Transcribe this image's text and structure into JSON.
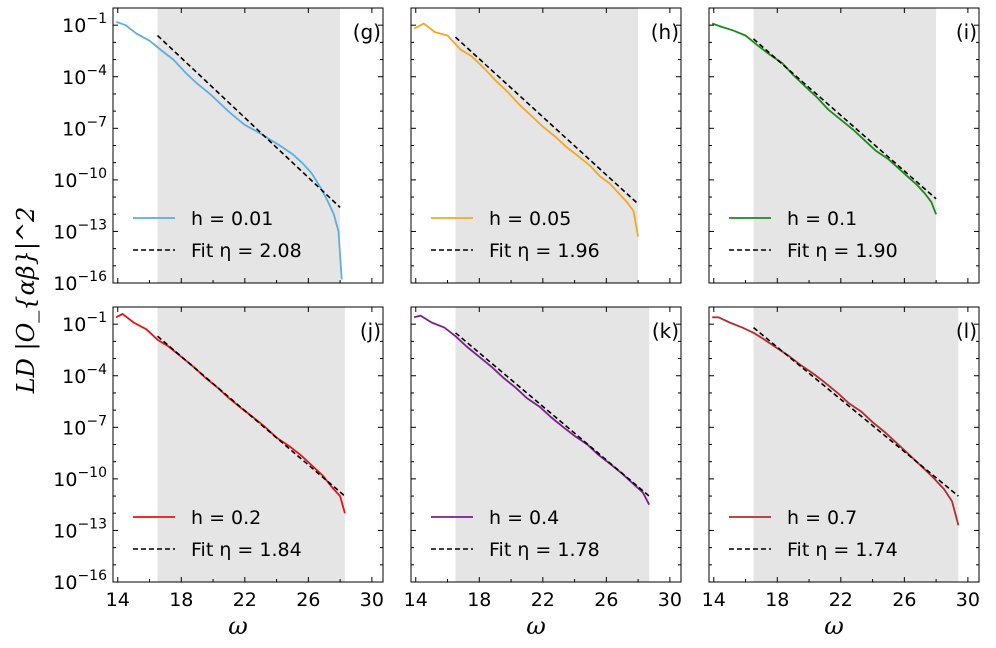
{
  "figure": {
    "ylabel": "LD |O_{αβ}|^2",
    "xlabel": "ω"
  },
  "chart_data": [
    {
      "type": "line",
      "panel": "(g)",
      "color": "#5dade2",
      "fit_region": [
        16.5,
        28.0
      ],
      "xlim": [
        13.7,
        30.7
      ],
      "ylim_exp": [
        -16,
        0
      ],
      "legend": [
        {
          "label": "h = 0.01",
          "style": "solid"
        },
        {
          "label": "Fit η = 2.08",
          "style": "dashed"
        }
      ],
      "series": [
        {
          "name": "h = 0.01",
          "x": [
            13.9,
            14.5,
            15.2,
            16.0,
            16.8,
            17.5,
            18.3,
            19.0,
            19.8,
            20.5,
            21.2,
            22.0,
            22.8,
            23.5,
            24.2,
            25.0,
            25.6,
            26.2,
            26.8,
            27.2,
            27.6,
            27.9,
            28.1
          ],
          "y": [
            -0.8,
            -1.0,
            -1.5,
            -1.9,
            -2.5,
            -3.0,
            -3.8,
            -4.4,
            -5.0,
            -5.6,
            -6.2,
            -6.8,
            -7.2,
            -7.6,
            -8.0,
            -8.5,
            -9.0,
            -9.6,
            -10.5,
            -11.2,
            -12.0,
            -13.0,
            -15.8
          ]
        },
        {
          "name": "Fit η = 2.08",
          "x": [
            16.5,
            28.0
          ],
          "y": [
            -1.6,
            -11.6
          ],
          "style": "dashed"
        }
      ]
    },
    {
      "type": "line",
      "panel": "(h)",
      "color": "#f5a623",
      "fit_region": [
        16.5,
        28.0
      ],
      "xlim": [
        13.7,
        30.7
      ],
      "ylim_exp": [
        -16,
        0
      ],
      "legend": [
        {
          "label": "h = 0.05",
          "style": "solid"
        },
        {
          "label": "Fit η = 1.96",
          "style": "dashed"
        }
      ],
      "series": [
        {
          "name": "h = 0.05",
          "x": [
            13.9,
            14.5,
            15.2,
            16.0,
            16.8,
            17.5,
            18.3,
            19.0,
            19.8,
            20.5,
            21.2,
            22.0,
            22.8,
            23.5,
            24.2,
            25.0,
            25.6,
            26.2,
            26.8,
            27.3,
            27.7,
            28.0
          ],
          "y": [
            -1.2,
            -0.9,
            -1.4,
            -1.6,
            -2.4,
            -2.8,
            -3.5,
            -4.2,
            -4.9,
            -5.6,
            -6.2,
            -6.9,
            -7.5,
            -8.1,
            -8.6,
            -9.2,
            -9.8,
            -10.2,
            -10.8,
            -11.3,
            -11.8,
            -13.3
          ]
        },
        {
          "name": "Fit η = 1.96",
          "x": [
            16.5,
            28.0
          ],
          "y": [
            -1.7,
            -11.4
          ],
          "style": "dashed"
        }
      ]
    },
    {
      "type": "line",
      "panel": "(i)",
      "color": "#1a8a1a",
      "fit_region": [
        16.5,
        28.0
      ],
      "xlim": [
        13.7,
        30.7
      ],
      "ylim_exp": [
        -16,
        0
      ],
      "legend": [
        {
          "label": "h = 0.1",
          "style": "solid"
        },
        {
          "label": "Fit η = 1.90",
          "style": "dashed"
        }
      ],
      "series": [
        {
          "name": "h = 0.1",
          "x": [
            13.9,
            14.5,
            15.2,
            16.0,
            16.8,
            17.5,
            18.3,
            19.0,
            19.8,
            20.5,
            21.2,
            22.0,
            22.8,
            23.5,
            24.2,
            25.0,
            25.6,
            26.2,
            26.8,
            27.3,
            27.7,
            28.0
          ],
          "y": [
            -0.9,
            -1.1,
            -1.3,
            -1.6,
            -2.2,
            -2.7,
            -3.2,
            -3.9,
            -4.6,
            -5.2,
            -5.9,
            -6.5,
            -7.1,
            -7.7,
            -8.3,
            -8.8,
            -9.3,
            -9.8,
            -10.3,
            -10.8,
            -11.3,
            -12.0
          ]
        },
        {
          "name": "Fit η = 1.90",
          "x": [
            16.5,
            28.0
          ],
          "y": [
            -1.8,
            -11.1
          ],
          "style": "dashed"
        }
      ]
    },
    {
      "type": "line",
      "panel": "(j)",
      "color": "#ee1111",
      "fit_region": [
        16.5,
        28.3
      ],
      "xlim": [
        13.7,
        30.7
      ],
      "ylim_exp": [
        -16,
        0
      ],
      "legend": [
        {
          "label": "h = 0.2",
          "style": "solid"
        },
        {
          "label": "Fit η = 1.84",
          "style": "dashed"
        }
      ],
      "series": [
        {
          "name": "h = 0.2",
          "x": [
            13.9,
            14.3,
            15.0,
            15.8,
            16.5,
            17.2,
            18.0,
            18.8,
            19.5,
            20.3,
            21.0,
            21.8,
            22.5,
            23.3,
            24.0,
            24.8,
            25.5,
            26.2,
            26.9,
            27.5,
            28.0,
            28.3
          ],
          "y": [
            -0.6,
            -0.4,
            -0.9,
            -1.3,
            -1.9,
            -2.3,
            -2.9,
            -3.5,
            -4.1,
            -4.7,
            -5.3,
            -5.9,
            -6.4,
            -7.0,
            -7.6,
            -8.1,
            -8.6,
            -9.2,
            -9.8,
            -10.5,
            -11.0,
            -12.0
          ]
        },
        {
          "name": "Fit η = 1.84",
          "x": [
            16.5,
            28.3
          ],
          "y": [
            -1.7,
            -11.0
          ],
          "style": "dashed"
        }
      ]
    },
    {
      "type": "line",
      "panel": "(k)",
      "color": "#7a1f8f",
      "fit_region": [
        16.5,
        28.7
      ],
      "xlim": [
        13.7,
        30.7
      ],
      "ylim_exp": [
        -16,
        0
      ],
      "legend": [
        {
          "label": "h = 0.4",
          "style": "solid"
        },
        {
          "label": "Fit η = 1.78",
          "style": "dashed"
        }
      ],
      "series": [
        {
          "name": "h = 0.4",
          "x": [
            13.9,
            14.3,
            15.0,
            15.8,
            16.5,
            17.2,
            18.0,
            18.8,
            19.5,
            20.3,
            21.0,
            21.8,
            22.5,
            23.3,
            24.0,
            24.8,
            25.5,
            26.2,
            27.0,
            27.7,
            28.3,
            28.7
          ],
          "y": [
            -0.6,
            -0.5,
            -0.9,
            -1.2,
            -1.7,
            -2.3,
            -2.9,
            -3.5,
            -4.1,
            -4.7,
            -5.3,
            -5.8,
            -6.4,
            -7.0,
            -7.5,
            -8.0,
            -8.6,
            -9.1,
            -9.7,
            -10.3,
            -10.8,
            -11.5
          ]
        },
        {
          "name": "Fit η = 1.78",
          "x": [
            16.5,
            28.7
          ],
          "y": [
            -1.5,
            -11.0
          ],
          "style": "dashed"
        }
      ]
    },
    {
      "type": "line",
      "panel": "(l)",
      "color": "#b22d2d",
      "fit_region": [
        16.5,
        29.4
      ],
      "xlim": [
        13.7,
        30.7
      ],
      "ylim_exp": [
        -16,
        0
      ],
      "legend": [
        {
          "label": "h = 0.7",
          "style": "solid"
        },
        {
          "label": "Fit η = 1.74",
          "style": "dashed"
        }
      ],
      "series": [
        {
          "name": "h = 0.7",
          "x": [
            13.9,
            14.3,
            15.0,
            15.8,
            16.5,
            17.2,
            18.0,
            18.8,
            19.5,
            20.3,
            21.0,
            21.8,
            22.5,
            23.3,
            24.0,
            24.8,
            25.5,
            26.2,
            27.0,
            27.8,
            28.5,
            29.0,
            29.4
          ],
          "y": [
            -0.6,
            -0.6,
            -0.9,
            -1.2,
            -1.5,
            -1.9,
            -2.4,
            -2.9,
            -3.4,
            -3.9,
            -4.4,
            -5.0,
            -5.6,
            -6.1,
            -6.7,
            -7.3,
            -7.9,
            -8.5,
            -9.2,
            -9.9,
            -10.6,
            -11.3,
            -12.7
          ]
        },
        {
          "name": "Fit η = 1.74",
          "x": [
            16.5,
            29.4
          ],
          "y": [
            -1.2,
            -11.0
          ],
          "style": "dashed"
        }
      ]
    }
  ],
  "axes": {
    "x_ticks": [
      14,
      18,
      22,
      26,
      30
    ],
    "y_ticks": [
      {
        "exp": -1,
        "label_base": "10",
        "label_exp": "−1"
      },
      {
        "exp": -4,
        "label_base": "10",
        "label_exp": "−4"
      },
      {
        "exp": -7,
        "label_base": "10",
        "label_exp": "−7"
      },
      {
        "exp": -10,
        "label_base": "10",
        "label_exp": "−10"
      },
      {
        "exp": -13,
        "label_base": "10",
        "label_exp": "−13"
      },
      {
        "exp": -16,
        "label_base": "10",
        "label_exp": "−16"
      }
    ]
  }
}
